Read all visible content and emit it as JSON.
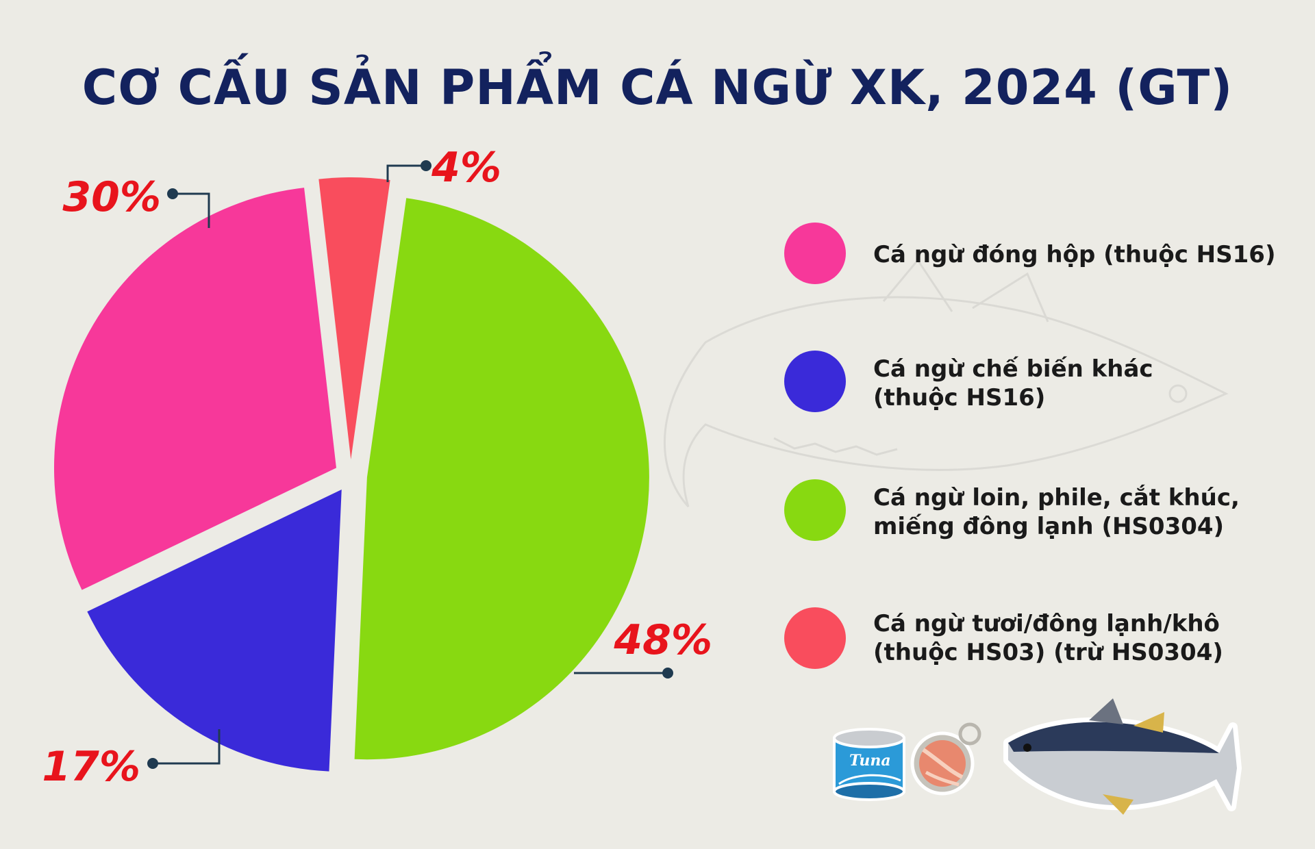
{
  "chart_data": {
    "type": "pie",
    "title": "CƠ CẤU SẢN PHẨM CÁ NGỪ XK, 2024 (GT)",
    "slices": [
      {
        "label": "Cá ngừ loin, phile, cắt khúc, miếng đông lạnh (HS0304)",
        "value": 48,
        "display": "48%",
        "color": "#88d911"
      },
      {
        "label": "Cá ngừ chế biến khác (thuộc HS16)",
        "value": 17,
        "display": "17%",
        "color": "#3a2ad9"
      },
      {
        "label": "Cá ngừ đóng hộp (thuộc HS16)",
        "value": 30,
        "display": "30%",
        "color": "#f7389a"
      },
      {
        "label": "Cá ngừ tươi/đông lạnh/khô (thuộc HS03) (trừ HS0304)",
        "value": 4,
        "display": "4%",
        "color": "#f94d5d"
      }
    ]
  },
  "legend": [
    {
      "lines": [
        "Cá ngừ đóng hộp (thuộc HS16)"
      ],
      "color": "#f7389a"
    },
    {
      "lines": [
        "Cá ngừ chế biến khác",
        "(thuộc HS16)"
      ],
      "color": "#3a2ad9"
    },
    {
      "lines": [
        "Cá ngừ loin, phile, cắt khúc,",
        "miếng đông lạnh (HS0304)"
      ],
      "color": "#88d911"
    },
    {
      "lines": [
        "Cá ngừ tươi/đông lạnh/khô",
        "(thuộc HS03) (trừ HS0304)"
      ],
      "color": "#f94d5d"
    }
  ],
  "decorations": {
    "can_label": "Tuna",
    "icons": [
      "tuna-can-icon",
      "opened-can-icon",
      "tuna-fish-icon",
      "fish-watermark-icon"
    ]
  }
}
